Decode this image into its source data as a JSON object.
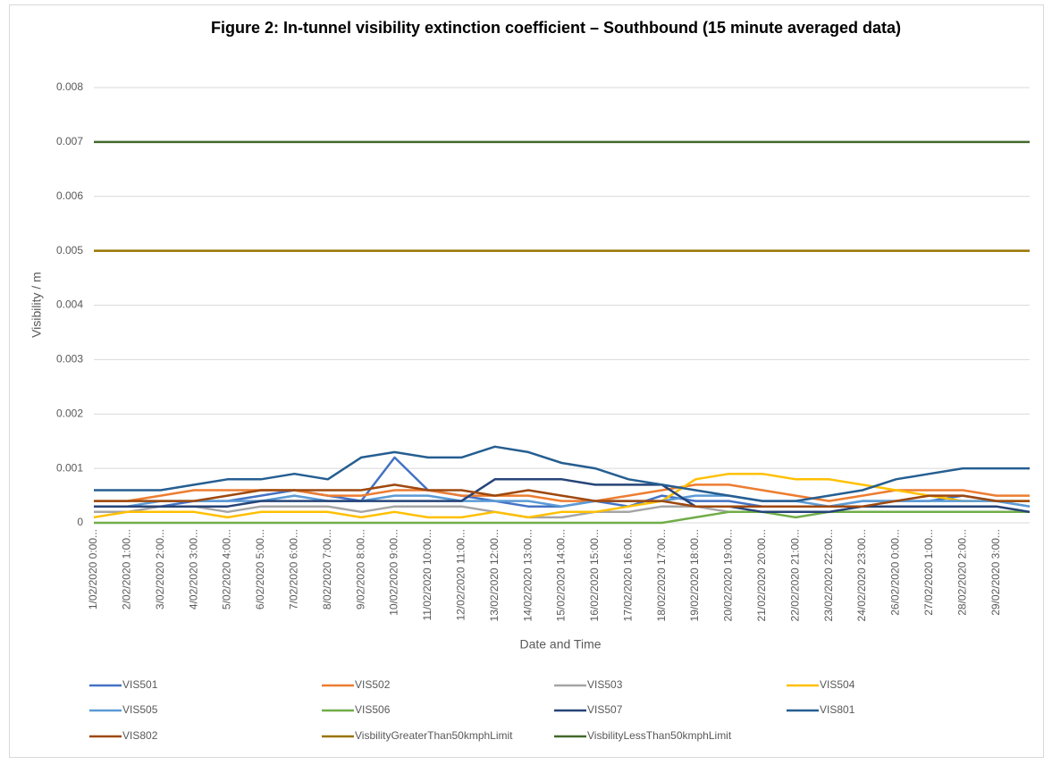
{
  "chart_data": {
    "type": "line",
    "title": "Figure 2: In-tunnel visibility extinction coefficient – Southbound (15 minute averaged data)",
    "x_label": "Date and Time",
    "y_label": "Visibility / m",
    "categories": [
      "1/02/2020 0:00...",
      "2/02/2020 1:00...",
      "3/02/2020 2:00...",
      "4/02/2020 3:00...",
      "5/02/2020 4:00...",
      "6/02/2020 5:00...",
      "7/02/2020 6:00...",
      "8/02/2020 7:00...",
      "9/02/2020 8:00...",
      "10/02/2020 9:00...",
      "11/02/2020 10:00...",
      "12/02/2020 11:00...",
      "13/02/2020 12:00...",
      "14/02/2020 13:00...",
      "15/02/2020 14:00...",
      "16/02/2020 15:00...",
      "17/02/2020 16:00...",
      "18/02/2020 17:00...",
      "19/02/2020 18:00...",
      "20/02/2020 19:00...",
      "21/02/2020 20:00...",
      "22/02/2020 21:00...",
      "23/02/2020 22:00...",
      "24/02/2020 23:00...",
      "26/02/2020 0:00...",
      "27/02/2020 1:00...",
      "28/02/2020 2:00...",
      "29/02/2020 3:00...",
      null
    ],
    "ylim": [
      0,
      0.008
    ],
    "yticks": [
      0,
      0.001,
      0.002,
      0.003,
      0.004,
      0.005,
      0.006,
      0.007,
      0.008
    ],
    "grid": true,
    "legend": "bottom",
    "series": [
      {
        "name": "VIS501",
        "color": "#4472c4",
        "values": [
          0.0003,
          0.0003,
          0.0003,
          0.0004,
          0.0004,
          0.0005,
          0.0006,
          0.0005,
          0.0004,
          0.0012,
          0.0006,
          0.0005,
          0.0004,
          0.0003,
          0.0003,
          0.0004,
          0.0003,
          0.0005,
          0.0004,
          0.0004,
          0.0003,
          0.0003,
          0.0003,
          0.0004,
          0.0004,
          0.0004,
          0.0005,
          0.0004,
          0.0003
        ]
      },
      {
        "name": "VIS502",
        "color": "#ed7d31",
        "values": [
          0.0004,
          0.0004,
          0.0005,
          0.0006,
          0.0006,
          0.0006,
          0.0006,
          0.0005,
          0.0005,
          0.0006,
          0.0006,
          0.0005,
          0.0005,
          0.0005,
          0.0004,
          0.0004,
          0.0005,
          0.0006,
          0.0007,
          0.0007,
          0.0006,
          0.0005,
          0.0004,
          0.0005,
          0.0006,
          0.0006,
          0.0006,
          0.0005,
          0.0005
        ]
      },
      {
        "name": "VIS503",
        "color": "#a5a5a5",
        "values": [
          0.0002,
          0.0002,
          0.0003,
          0.0003,
          0.0002,
          0.0003,
          0.0003,
          0.0003,
          0.0002,
          0.0003,
          0.0003,
          0.0003,
          0.0002,
          0.0001,
          0.0001,
          0.0002,
          0.0002,
          0.0003,
          0.0003,
          0.0002,
          0.0002,
          0.0002,
          0.0002,
          0.0003,
          0.0003,
          0.0003,
          0.0003,
          0.0003,
          0.0002
        ]
      },
      {
        "name": "VIS504",
        "color": "#ffc000",
        "values": [
          0.0001,
          0.0002,
          0.0002,
          0.0002,
          0.0001,
          0.0002,
          0.0002,
          0.0002,
          0.0001,
          0.0002,
          0.0001,
          0.0001,
          0.0002,
          0.0001,
          0.0002,
          0.0002,
          0.0003,
          0.0004,
          0.0008,
          0.0009,
          0.0009,
          0.0008,
          0.0008,
          0.0007,
          0.0006,
          0.0005,
          0.0004,
          0.0004,
          0.0004
        ]
      },
      {
        "name": "VIS505",
        "color": "#5b9bd5",
        "values": [
          0.0003,
          0.0003,
          0.0004,
          0.0004,
          0.0004,
          0.0004,
          0.0005,
          0.0004,
          0.0004,
          0.0005,
          0.0005,
          0.0004,
          0.0004,
          0.0004,
          0.0003,
          0.0004,
          0.0004,
          0.0004,
          0.0005,
          0.0005,
          0.0004,
          0.0004,
          0.0003,
          0.0004,
          0.0004,
          0.0004,
          0.0004,
          0.0004,
          0.0003
        ]
      },
      {
        "name": "VIS506",
        "color": "#70ad47",
        "values": [
          0,
          0,
          0,
          0,
          0,
          0,
          0,
          0,
          0,
          0,
          0,
          0,
          0,
          0,
          0,
          0,
          0,
          0,
          0.0001,
          0.0002,
          0.0002,
          0.0001,
          0.0002,
          0.0002,
          0.0002,
          0.0002,
          0.0002,
          0.0002,
          0.0002
        ]
      },
      {
        "name": "VIS507",
        "color": "#264478",
        "values": [
          0.0003,
          0.0003,
          0.0003,
          0.0003,
          0.0003,
          0.0004,
          0.0004,
          0.0004,
          0.0004,
          0.0004,
          0.0004,
          0.0004,
          0.0008,
          0.0008,
          0.0008,
          0.0007,
          0.0007,
          0.0007,
          0.0003,
          0.0003,
          0.0002,
          0.0002,
          0.0002,
          0.0003,
          0.0003,
          0.0003,
          0.0003,
          0.0003,
          0.0002
        ]
      },
      {
        "name": "VIS801",
        "color": "#255e91",
        "values": [
          0.0006,
          0.0006,
          0.0006,
          0.0007,
          0.0008,
          0.0008,
          0.0009,
          0.0008,
          0.0012,
          0.0013,
          0.0012,
          0.0012,
          0.0014,
          0.0013,
          0.0011,
          0.001,
          0.0008,
          0.0007,
          0.0006,
          0.0005,
          0.0004,
          0.0004,
          0.0005,
          0.0006,
          0.0008,
          0.0009,
          0.001,
          0.001,
          0.001
        ]
      },
      {
        "name": "VIS802",
        "color": "#9e480e",
        "values": [
          0.0004,
          0.0004,
          0.0004,
          0.0004,
          0.0005,
          0.0006,
          0.0006,
          0.0006,
          0.0006,
          0.0007,
          0.0006,
          0.0006,
          0.0005,
          0.0006,
          0.0005,
          0.0004,
          0.0004,
          0.0004,
          0.0003,
          0.0003,
          0.0003,
          0.0003,
          0.0003,
          0.0003,
          0.0004,
          0.0005,
          0.0005,
          0.0004,
          0.0004
        ]
      },
      {
        "name": "VisbilityGreaterThan50kmphLimit",
        "color": "#997300",
        "values": [
          0.005,
          0.005,
          0.005,
          0.005,
          0.005,
          0.005,
          0.005,
          0.005,
          0.005,
          0.005,
          0.005,
          0.005,
          0.005,
          0.005,
          0.005,
          0.005,
          0.005,
          0.005,
          0.005,
          0.005,
          0.005,
          0.005,
          0.005,
          0.005,
          0.005,
          0.005,
          0.005,
          0.005,
          0.005
        ]
      },
      {
        "name": "VisbilityLessThan50kmphLimit",
        "color": "#43682b",
        "values": [
          0.007,
          0.007,
          0.007,
          0.007,
          0.007,
          0.007,
          0.007,
          0.007,
          0.007,
          0.007,
          0.007,
          0.007,
          0.007,
          0.007,
          0.007,
          0.007,
          0.007,
          0.007,
          0.007,
          0.007,
          0.007,
          0.007,
          0.007,
          0.007,
          0.007,
          0.007,
          0.007,
          0.007,
          0.007
        ]
      }
    ]
  }
}
